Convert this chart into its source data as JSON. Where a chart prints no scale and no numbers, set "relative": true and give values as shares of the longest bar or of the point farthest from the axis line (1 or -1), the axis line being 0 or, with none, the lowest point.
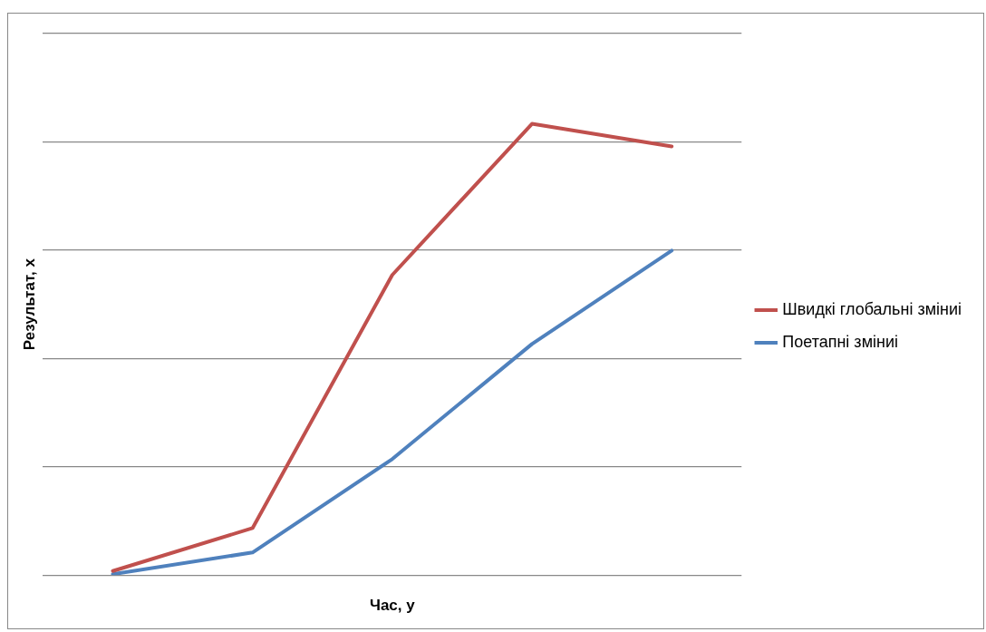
{
  "chart_data": {
    "type": "line",
    "xlabel": "Час, y",
    "ylabel": "Результат, x",
    "relative": true,
    "categories": [
      null,
      null,
      null,
      null,
      null
    ],
    "series": [
      {
        "name": "Швидкі глобальні зміниі",
        "color": "#c0504d",
        "values": [
          0.009,
          0.104,
          0.665,
          1,
          0.95
        ]
      },
      {
        "name": "Поетапні зміниі",
        "color": "#4f81bd",
        "values": [
          0.002,
          0.05,
          0.257,
          0.512,
          0.719
        ]
      }
    ],
    "grid": "y",
    "legend": "right",
    "marker": "none",
    "line_style": "solid"
  }
}
